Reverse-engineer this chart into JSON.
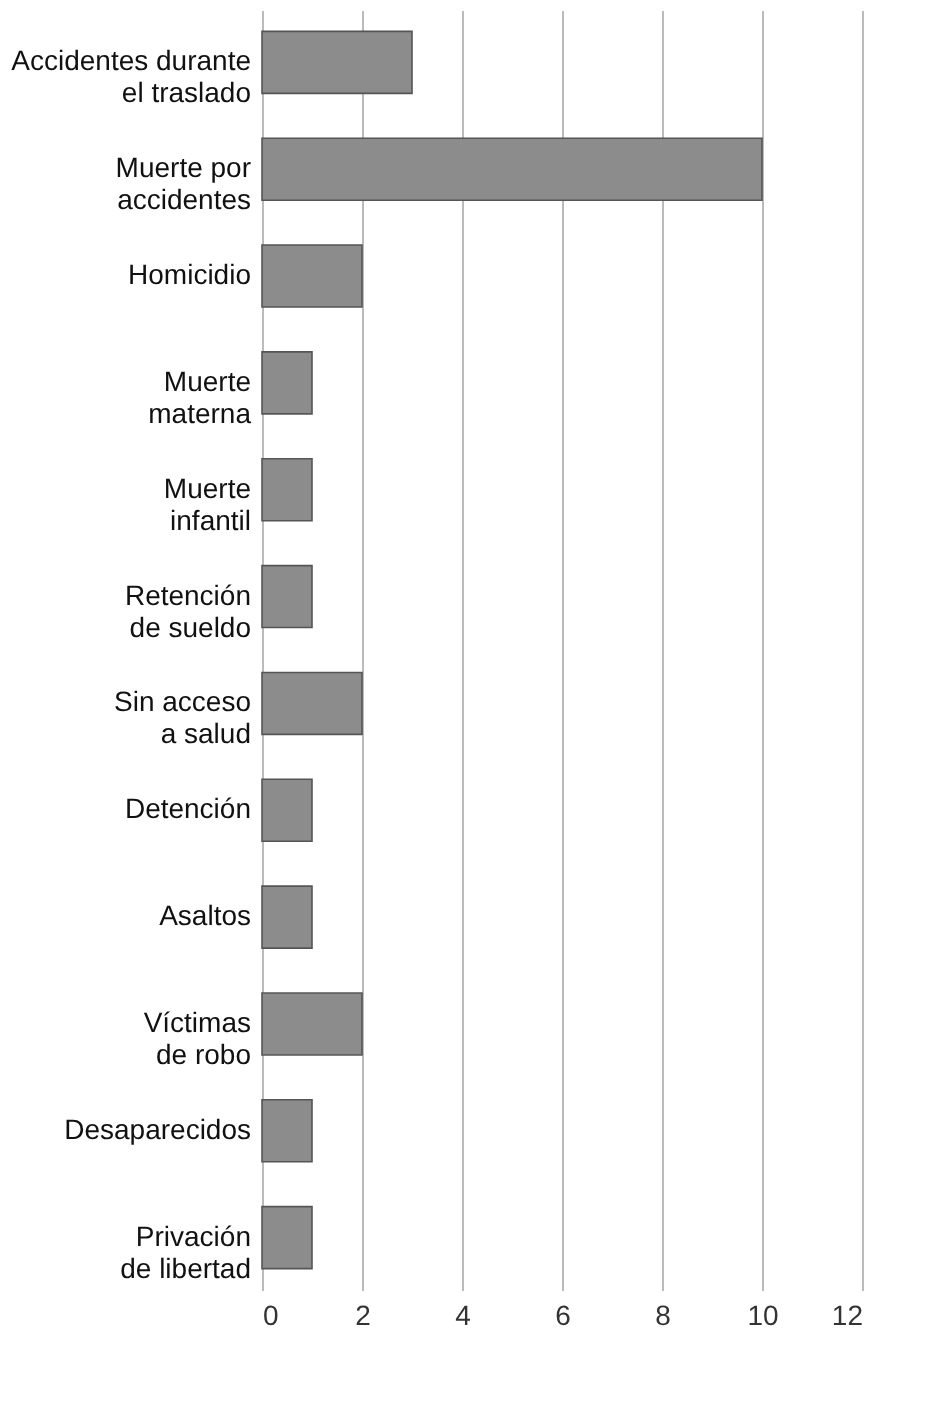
{
  "chart_data": {
    "type": "bar",
    "orientation": "horizontal",
    "categories": [
      "Accidentes durante\nel traslado",
      "Muerte por\naccidentes",
      "Homicidio",
      "Muerte\nmaterna",
      "Muerte\ninfantil",
      "Retención\nde sueldo",
      "Sin acceso\na salud",
      "Detención",
      "Asaltos",
      "Víctimas\nde robo",
      "Desaparecidos",
      "Privación\nde libertad"
    ],
    "values": [
      3,
      10,
      2,
      1,
      1,
      1,
      2,
      1,
      1,
      2,
      1,
      1
    ],
    "color": "#8c8c8c",
    "xlim": [
      0,
      12
    ],
    "xticks": [
      0,
      2,
      4,
      6,
      8,
      10,
      12
    ],
    "grid": "x"
  }
}
